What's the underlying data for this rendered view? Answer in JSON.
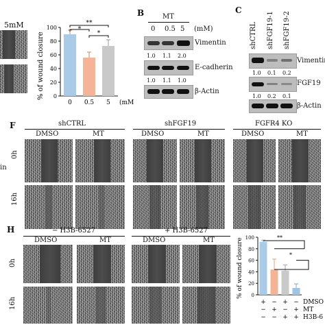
{
  "panelA": {
    "title": "5mM"
  },
  "chartA": {
    "ylabel": "% of wound closure",
    "ticks": [
      "0",
      "20",
      "40",
      "60",
      "80",
      "100"
    ],
    "xunit": "(mM)",
    "sig1": "**",
    "sig2": "*",
    "sig3": "*"
  },
  "chart_data": [
    {
      "type": "bar",
      "categories": [
        "0",
        "0.5",
        "5"
      ],
      "values": [
        90,
        56,
        73
      ],
      "errors": [
        6,
        8,
        9
      ],
      "colors": [
        "#a9cbe8",
        "#f3b497",
        "#c9c9c9"
      ],
      "ylabel": "% of wound closure",
      "xlabel": "(mM)",
      "ylim": [
        0,
        100
      ]
    },
    {
      "type": "bar",
      "categories": [
        "DMSO",
        "MT",
        "H3B-6527",
        "MT + H3B-6527"
      ],
      "values": [
        92,
        44,
        42,
        12
      ],
      "errors": [
        3,
        18,
        10,
        7
      ],
      "colors": [
        "#a9cbe8",
        "#f3b497",
        "#c9c9c9",
        "#9ec3e3"
      ],
      "ylabel": "% of wound closure",
      "ylim": [
        0,
        100
      ]
    }
  ],
  "panelB": {
    "letter": "B",
    "treatment": "MT",
    "doses": [
      "0",
      "0.5",
      "5"
    ],
    "unit": "(mM)",
    "rows": [
      {
        "name": "Vimentin",
        "values": [
          "1.0",
          "1.1",
          "2.0"
        ]
      },
      {
        "name": "E-cadherin",
        "values": [
          "1.0",
          "1.1",
          "1.0"
        ]
      },
      {
        "name": "β-Actin",
        "values": []
      }
    ]
  },
  "panelC": {
    "letter": "C",
    "lanes": [
      "shCTRL",
      "shFGF19-1",
      "shFGF19-2"
    ],
    "rows": [
      {
        "name": "Vimentin",
        "values": [
          "1.0",
          "0.1",
          "0.2"
        ]
      },
      {
        "name": "FGF19",
        "values": [
          "1.0",
          "0.2",
          "0.1"
        ]
      },
      {
        "name": "β-Actin",
        "values": []
      }
    ]
  },
  "panelF": {
    "letter": "F",
    "groups": [
      "shCTRL",
      "shFGF19",
      "FGFR4 KO"
    ],
    "conds": [
      "DMSO",
      "MT"
    ],
    "rows": [
      "0h",
      "16h"
    ],
    "sidelabel": "in"
  },
  "panelH": {
    "letter": "H",
    "groups": [
      "− H3B-6527",
      "+ H3B-6527"
    ],
    "conds": [
      "DMSO",
      "MT"
    ],
    "rows": [
      "0h",
      "16h"
    ],
    "crop": "H3B-6"
  },
  "chartH": {
    "ylabel": "% of wound closure",
    "ticks": [
      "0",
      "20",
      "40",
      "60",
      "80",
      "100"
    ],
    "sig1": "**",
    "sig2": "*",
    "rowlabels": [
      "DMSO",
      "MT",
      "H3B-6"
    ],
    "signs": [
      [
        "+",
        "−",
        "+",
        "−"
      ],
      [
        "−",
        "+",
        "−",
        "+"
      ],
      [
        "−",
        "−",
        "+",
        "+"
      ]
    ]
  }
}
